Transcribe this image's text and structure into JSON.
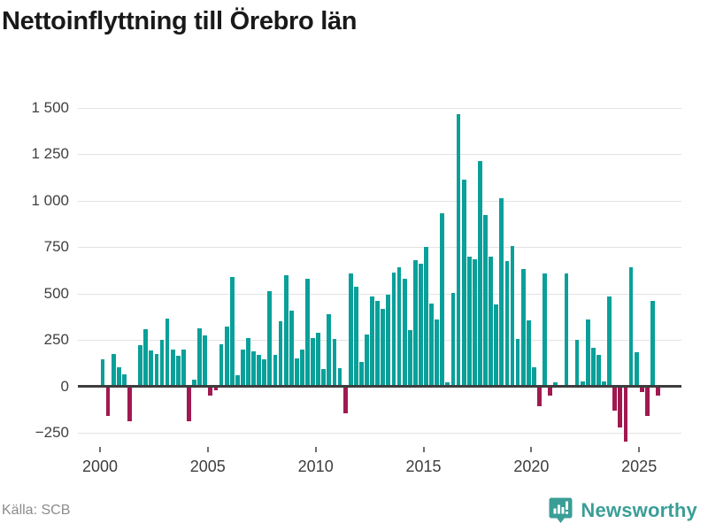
{
  "title": "Nettoinflyttning till Örebro län",
  "source": {
    "label": "Källa: SCB"
  },
  "branding": {
    "name": "Newsworthy",
    "logo_icon": "speech-bubble-bar-chart-icon"
  },
  "colors": {
    "bar_positive": "#0aa09a",
    "bar_negative": "#a01950",
    "zero_axis": "#3d3d3d",
    "gridline": "#e3e3e3",
    "axis_labels": "#404040",
    "title_text": "#191919",
    "source_text": "#8c8c8c",
    "brand_teal": "#3a9e97"
  },
  "chart_data": {
    "type": "bar",
    "title": "Nettoinflyttning till Örebro län",
    "xlabel": "",
    "ylabel": "",
    "grid": "horizontal",
    "legend": "none",
    "frequency": "quarterly",
    "x_start": "2000 Q1",
    "x_end": "2025 Q4",
    "ylim": [
      -310,
      1600
    ],
    "y_ticks": {
      "values": [
        1500,
        1250,
        1000,
        750,
        500,
        250,
        0,
        -250
      ],
      "labels": [
        "1 500",
        "1 250",
        "1 000",
        "750",
        "500",
        "250",
        "0",
        "−250"
      ]
    },
    "x_ticks": {
      "values": [
        2000,
        2005,
        2010,
        2015,
        2020,
        2025
      ],
      "labels": [
        "2000",
        "2005",
        "2010",
        "2015",
        "2020",
        "2025"
      ]
    },
    "values": [
      140,
      -150,
      170,
      100,
      60,
      -180,
      5,
      215,
      305,
      190,
      170,
      245,
      360,
      195,
      160,
      195,
      -180,
      30,
      310,
      270,
      -45,
      -15,
      220,
      315,
      585,
      55,
      195,
      255,
      185,
      165,
      140,
      510,
      165,
      345,
      595,
      405,
      145,
      195,
      575,
      255,
      285,
      90,
      385,
      250,
      95,
      -140,
      605,
      530,
      125,
      275,
      480,
      455,
      415,
      490,
      610,
      635,
      575,
      300,
      675,
      655,
      745,
      440,
      355,
      930,
      15,
      500,
      1460,
      1110,
      695,
      680,
      1210,
      920,
      695,
      435,
      1010,
      670,
      750,
      250,
      625,
      350,
      100,
      -100,
      605,
      -45,
      15,
      5,
      605,
      5,
      245,
      20,
      355,
      205,
      165,
      20,
      480,
      -125,
      -215,
      -290,
      635,
      180,
      -25,
      -150,
      455,
      -45
    ]
  }
}
